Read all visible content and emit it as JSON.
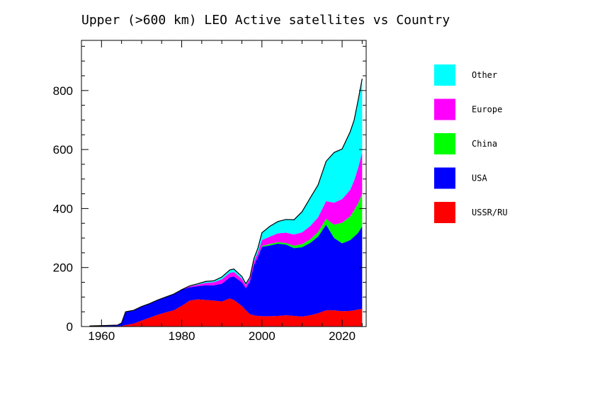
{
  "chart_data": {
    "type": "area",
    "stacked": true,
    "title": "Upper (>600 km) LEO Active satellites vs Country",
    "xlabel": "",
    "ylabel": "",
    "xlim": [
      1955,
      2026
    ],
    "ylim": [
      0,
      970
    ],
    "xticks": [
      1960,
      1980,
      2000,
      2020
    ],
    "yticks": [
      0,
      200,
      400,
      600,
      800
    ],
    "legend_position": "right",
    "x": [
      1957,
      1960,
      1962,
      1964,
      1965,
      1966,
      1968,
      1970,
      1972,
      1974,
      1976,
      1978,
      1980,
      1982,
      1984,
      1986,
      1988,
      1990,
      1992,
      1993,
      1995,
      1996,
      1997,
      1998,
      1999,
      2000,
      2002,
      2004,
      2006,
      2008,
      2010,
      2012,
      2014,
      2016,
      2018,
      2020,
      2022,
      2023,
      2024,
      2025
    ],
    "series": [
      {
        "name": "USSR/RU",
        "color": "#ff0000",
        "values": [
          0,
          0,
          0,
          0,
          2,
          5,
          10,
          20,
          30,
          40,
          48,
          55,
          70,
          88,
          92,
          90,
          88,
          85,
          95,
          90,
          70,
          55,
          42,
          38,
          36,
          35,
          35,
          36,
          38,
          36,
          34,
          38,
          45,
          55,
          55,
          52,
          53,
          55,
          58,
          60
        ]
      },
      {
        "name": "USA",
        "color": "#0000ff",
        "values": [
          2,
          3,
          4,
          5,
          10,
          45,
          45,
          48,
          48,
          50,
          52,
          55,
          55,
          45,
          45,
          50,
          52,
          60,
          72,
          80,
          80,
          75,
          110,
          170,
          200,
          235,
          240,
          245,
          240,
          230,
          235,
          245,
          260,
          290,
          245,
          230,
          240,
          250,
          260,
          280
        ]
      },
      {
        "name": "China",
        "color": "#00ff00",
        "values": [
          0,
          0,
          0,
          0,
          0,
          0,
          0,
          0,
          0,
          0,
          0,
          0,
          0,
          0,
          0,
          0,
          0,
          0,
          0,
          0,
          0,
          0,
          0,
          0,
          0,
          3,
          5,
          5,
          5,
          8,
          10,
          12,
          15,
          20,
          45,
          70,
          80,
          90,
          100,
          110
        ]
      },
      {
        "name": "Europe",
        "color": "#ff00ff",
        "values": [
          0,
          0,
          0,
          0,
          0,
          0,
          0,
          0,
          0,
          0,
          0,
          0,
          0,
          3,
          5,
          8,
          10,
          15,
          15,
          15,
          12,
          10,
          10,
          12,
          15,
          20,
          25,
          30,
          35,
          38,
          40,
          45,
          50,
          60,
          75,
          80,
          90,
          100,
          120,
          140
        ]
      },
      {
        "name": "Other",
        "color": "#00ffff",
        "values": [
          0,
          0,
          0,
          0,
          0,
          0,
          0,
          0,
          0,
          0,
          0,
          0,
          0,
          2,
          3,
          5,
          5,
          8,
          10,
          10,
          8,
          5,
          5,
          10,
          15,
          25,
          35,
          40,
          45,
          50,
          70,
          95,
          110,
          135,
          170,
          170,
          197,
          205,
          230,
          250
        ]
      }
    ]
  }
}
